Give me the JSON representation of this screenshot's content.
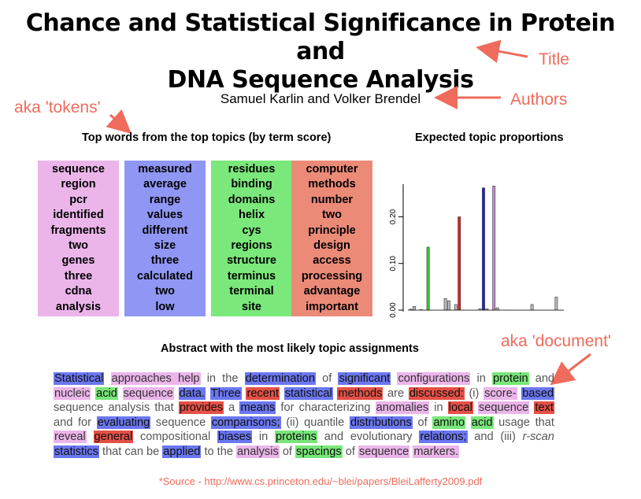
{
  "title_lines": [
    "Chance and Statistical Significance in Protein and",
    "DNA Sequence Analysis"
  ],
  "authors": "Samuel Karlin and Volker Brendel",
  "callouts": {
    "title": "Title",
    "authors": "Authors",
    "tokens": "aka 'tokens'",
    "document": "aka 'document'"
  },
  "headings": {
    "top_words": "Top words from the top topics (by term score)",
    "proportions": "Expected topic proportions",
    "abstract": "Abstract with the most likely topic assignments"
  },
  "topics": [
    {
      "color": "#ebb5ea",
      "words": [
        "sequence",
        "region",
        "pcr",
        "identified",
        "fragments",
        "two",
        "genes",
        "three",
        "cdna",
        "analysis"
      ]
    },
    {
      "color": "#8f96f4",
      "words": [
        "measured",
        "average",
        "range",
        "values",
        "different",
        "size",
        "three",
        "calculated",
        "two",
        "low"
      ]
    },
    {
      "color": "#7be87b",
      "words": [
        "residues",
        "binding",
        "domains",
        "helix",
        "cys",
        "regions",
        "structure",
        "terminus",
        "terminal",
        "site"
      ]
    },
    {
      "color": "#ec8a78",
      "words": [
        "computer",
        "methods",
        "number",
        "two",
        "principle",
        "design",
        "access",
        "processing",
        "advantage",
        "important"
      ]
    }
  ],
  "abstract_tokens": [
    [
      "Statistical",
      "blue"
    ],
    [
      "approaches help",
      "pink"
    ],
    [
      "in the",
      ""
    ],
    [
      "determination",
      "blue"
    ],
    [
      "of",
      ""
    ],
    [
      "significant",
      "blue"
    ],
    [
      "configurations",
      "pink"
    ],
    [
      "in",
      ""
    ],
    [
      "protein",
      "green"
    ],
    [
      "and",
      ""
    ],
    [
      "nucleic",
      "pink"
    ],
    [
      "acid",
      "green"
    ],
    [
      "sequence",
      "pink"
    ],
    [
      "data.",
      "blue"
    ],
    [
      "Three",
      "blue"
    ],
    [
      "recent",
      "red"
    ],
    [
      "statistical",
      "blue"
    ],
    [
      "methods",
      "red"
    ],
    [
      "are",
      ""
    ],
    [
      "discussed:",
      "red"
    ],
    [
      "(i)",
      ""
    ],
    [
      "score-",
      "pink"
    ],
    [
      "based",
      "blue"
    ],
    [
      "sequence analysis",
      ""
    ],
    [
      "that",
      ""
    ],
    [
      "provides",
      "red"
    ],
    [
      "a",
      ""
    ],
    [
      "means",
      "blue"
    ],
    [
      "for characterizing",
      ""
    ],
    [
      "anomalies",
      "pink"
    ],
    [
      "in",
      ""
    ],
    [
      "local",
      "red"
    ],
    [
      "sequence",
      "pink"
    ],
    [
      "text",
      "red"
    ],
    [
      "and for",
      ""
    ],
    [
      "evaluating",
      "blue"
    ],
    [
      "sequence",
      ""
    ],
    [
      "comparisons;",
      "blue"
    ],
    [
      "(ii) quantile",
      ""
    ],
    [
      "distributions",
      "blue"
    ],
    [
      "of",
      ""
    ],
    [
      "amino",
      "green"
    ],
    [
      "acid",
      "green"
    ],
    [
      "usage that",
      ""
    ],
    [
      "reveal",
      "pink"
    ],
    [
      "general",
      "red"
    ],
    [
      "compositional",
      ""
    ],
    [
      "biases",
      "blue"
    ],
    [
      "in",
      ""
    ],
    [
      "proteins",
      "green"
    ],
    [
      "and evolutionary",
      ""
    ],
    [
      "relations;",
      "blue"
    ],
    [
      "and (iii)",
      ""
    ],
    [
      "r-scan",
      ""
    ],
    [
      "statistics",
      "blue"
    ],
    [
      "that can be",
      ""
    ],
    [
      "applied",
      "blue"
    ],
    [
      "to the",
      ""
    ],
    [
      "analysis",
      "pink"
    ],
    [
      "of",
      ""
    ],
    [
      "spacings",
      "green"
    ],
    [
      "of",
      ""
    ],
    [
      "sequence",
      "pink"
    ],
    [
      "markers.",
      "pink"
    ]
  ],
  "source": "*Source - http://www.cs.princeton.edu/~blei/papers/BleiLafferty2009.pdf",
  "chart_data": {
    "type": "bar",
    "title": "Expected topic proportions",
    "ylim": [
      0,
      0.27
    ],
    "yticks": [
      "0.00",
      "0.10",
      "0.20"
    ],
    "ytick_values": [
      0,
      0.1,
      0.2
    ],
    "series": [
      {
        "values": [
          0.002,
          0.008,
          0.0,
          0.001,
          0.0,
          0.135,
          0.0,
          0.0,
          0.0,
          0.0,
          0.025,
          0.02,
          0.0,
          0.012,
          0.2,
          0.0,
          0.0,
          0.0,
          0.0,
          0.0,
          0.003,
          0.262,
          0.003,
          0.0,
          0.266,
          0.005,
          0.0,
          0.0,
          0.0,
          0.0,
          0.0,
          0.0,
          0.0,
          0.0,
          0.0,
          0.012,
          0.0,
          0.0,
          0.0,
          0.0,
          0.0,
          0.0,
          0.028,
          0.0,
          0.0
        ],
        "colors": [
          "#bbb",
          "#bbb",
          "#bbb",
          "#bbb",
          "#bbb",
          "#33cc33",
          "#bbb",
          "#bbb",
          "#bbb",
          "#bbb",
          "#bbb",
          "#bbb",
          "#bbb",
          "#bbb",
          "#dd2222",
          "#bbb",
          "#bbb",
          "#bbb",
          "#bbb",
          "#bbb",
          "#bbb",
          "#2222cc",
          "#bbb",
          "#bbb",
          "#cc88dd",
          "#bbb",
          "#bbb",
          "#bbb",
          "#bbb",
          "#bbb",
          "#bbb",
          "#bbb",
          "#bbb",
          "#bbb",
          "#bbb",
          "#bbb",
          "#bbb",
          "#bbb",
          "#bbb",
          "#bbb",
          "#bbb",
          "#bbb",
          "#bbb",
          "#bbb",
          "#bbb"
        ]
      }
    ]
  },
  "accent": "#ef6b5c"
}
